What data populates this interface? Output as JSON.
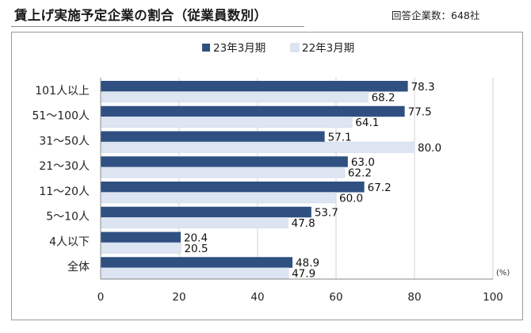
{
  "title": "賃上げ実施予定企業の割合（従業員数別）",
  "note": "回答企業数：648社",
  "chart_data": {
    "type": "bar",
    "orientation": "horizontal",
    "categories": [
      "101人以上",
      "51〜100人",
      "31〜50人",
      "21〜30人",
      "11〜20人",
      "5〜10人",
      "4人以下",
      "全体"
    ],
    "series": [
      {
        "name": "23年3月期",
        "color": "#2f5081",
        "values": [
          78.3,
          77.5,
          57.1,
          63.0,
          67.2,
          53.7,
          20.4,
          48.9
        ]
      },
      {
        "name": "22年3月期",
        "color": "#dce5f1",
        "values": [
          68.2,
          64.1,
          80.0,
          62.2,
          60.0,
          47.8,
          20.5,
          47.9
        ]
      }
    ],
    "x_unit": "(%)",
    "xlim": [
      0,
      100
    ],
    "xticks": [
      0,
      20,
      40,
      60,
      80,
      100
    ],
    "grid": true,
    "legend_position": "top-center"
  }
}
